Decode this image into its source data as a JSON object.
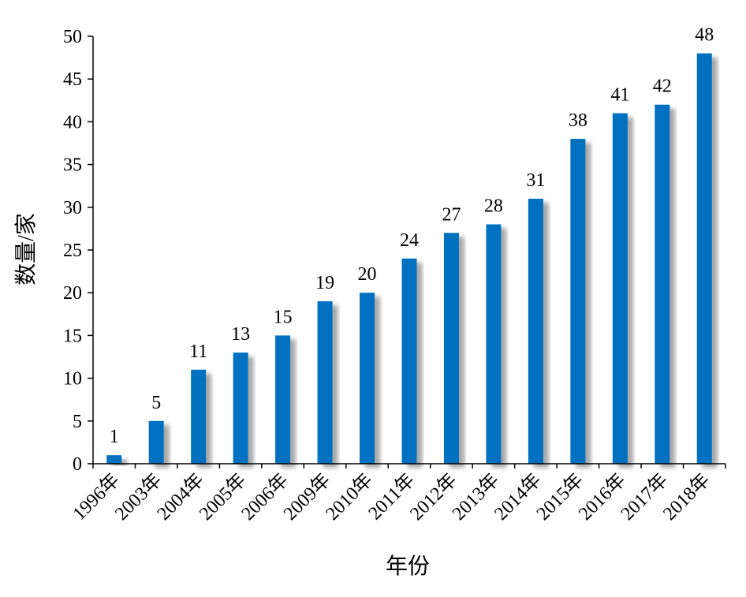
{
  "chart_data": {
    "type": "bar",
    "categories": [
      "1996年",
      "2003年",
      "2004年",
      "2005年",
      "2006年",
      "2009年",
      "2010年",
      "2011年",
      "2012年",
      "2013年",
      "2014年",
      "2015年",
      "2016年",
      "2017年",
      "2018年"
    ],
    "values": [
      1,
      5,
      11,
      13,
      15,
      19,
      20,
      24,
      27,
      28,
      31,
      38,
      41,
      42,
      48
    ],
    "xlabel": "年份",
    "ylabel": "数量/家",
    "ylim": [
      0,
      50
    ],
    "yticks": [
      0,
      5,
      10,
      15,
      20,
      25,
      30,
      35,
      40,
      45,
      50
    ],
    "grid": false,
    "legend": "none",
    "data_labels": true,
    "colors": {
      "bar": "#0070C0",
      "shadow": "#C8C8C8",
      "axis": "#000000"
    }
  }
}
